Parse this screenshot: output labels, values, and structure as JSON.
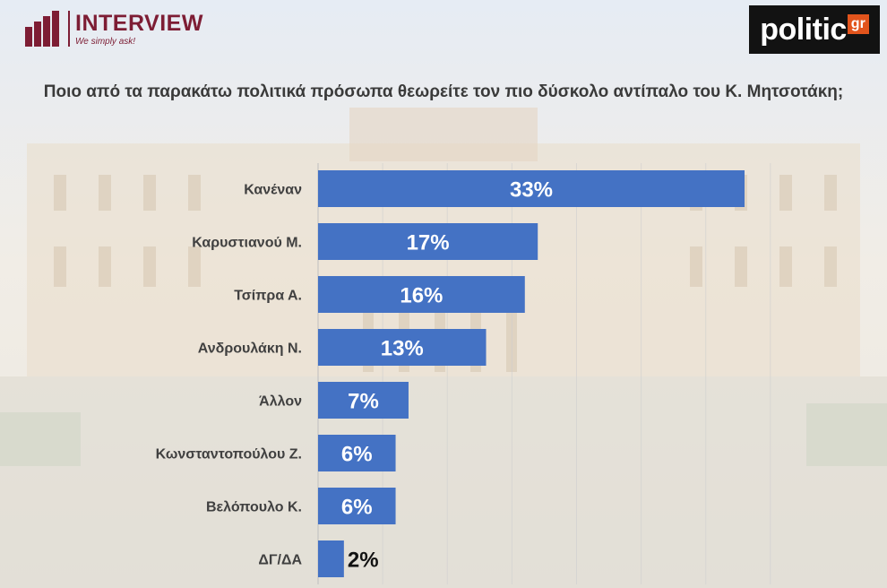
{
  "brand_left": {
    "name": "INTERVIEW",
    "tagline": "We simply ask!"
  },
  "brand_right": {
    "name": "politic",
    "suffix": "gr"
  },
  "chart_data": {
    "type": "bar",
    "orientation": "horizontal",
    "title": "Ποιο από τα παρακάτω πολιτικά πρόσωπα θεωρείτε τον πιο δύσκολο αντίπαλο του Κ. Μητσοτάκη;",
    "categories": [
      "Κανέναν",
      "Καρυστιανού Μ.",
      "Τσίπρα Α.",
      "Ανδρουλάκη Ν.",
      "Άλλον",
      "Κωνσταντοπούλου Ζ.",
      "Βελόπουλο Κ.",
      "ΔΓ/ΔΑ"
    ],
    "values": [
      33,
      17,
      16,
      13,
      7,
      6,
      6,
      2
    ],
    "value_labels": [
      "33%",
      "17%",
      "16%",
      "13%",
      "7%",
      "6%",
      "6%",
      "2%"
    ],
    "unit": "%",
    "bar_color": "#4472c4",
    "xlim": [
      0,
      35
    ],
    "grid": true,
    "legend": "none"
  }
}
